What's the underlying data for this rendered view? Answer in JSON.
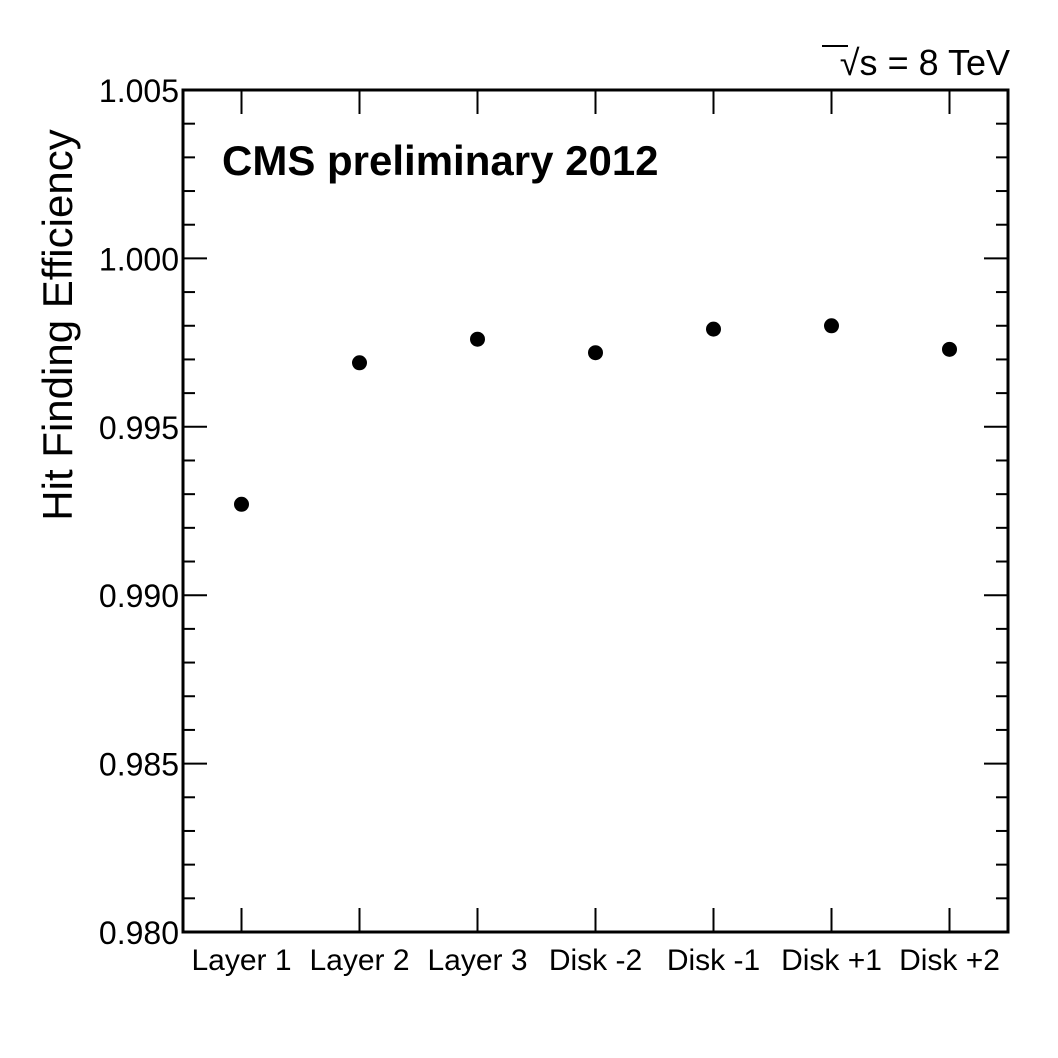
{
  "chart_data": {
    "type": "scatter",
    "title": "",
    "annotation": "CMS preliminary 2012",
    "energy_label": {
      "root": "√s",
      "rest": " = 8 TeV"
    },
    "xlabel": "",
    "ylabel": "Hit Finding Efficiency",
    "categories": [
      "Layer 1",
      "Layer 2",
      "Layer 3",
      "Disk -2",
      "Disk -1",
      "Disk +1",
      "Disk +2"
    ],
    "values": [
      0.9927,
      0.9969,
      0.9976,
      0.9972,
      0.9979,
      0.998,
      0.9973
    ],
    "ylim": [
      0.98,
      1.005
    ],
    "yticks": [
      "0.980",
      "0.985",
      "0.990",
      "0.995",
      "1.000",
      "1.005"
    ],
    "grid": false,
    "marker_color": "#000000"
  }
}
